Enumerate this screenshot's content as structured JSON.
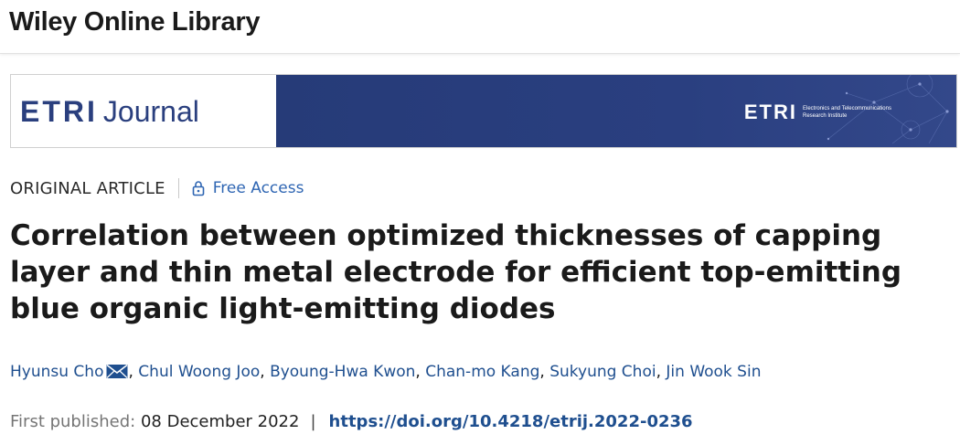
{
  "header": {
    "brand": "Wiley Online Library"
  },
  "banner": {
    "journal_etri": "ETRI",
    "journal_word": "Journal",
    "right_logo_etri": "ETRI",
    "right_logo_sub": "Electronics and Telecommunications Research Institute"
  },
  "meta": {
    "article_type": "ORIGINAL ARTICLE",
    "access": "Free Access"
  },
  "title": "Correlation between optimized thicknesses of capping layer and thin metal electrode for efficient top-emitting blue organic light-emitting diodes",
  "authors": [
    "Hyunsu Cho",
    "Chul Woong Joo",
    "Byoung-Hwa Kwon",
    "Chan-mo Kang",
    "Sukyung Choi",
    "Jin Wook Sin"
  ],
  "publication": {
    "label": "First published:",
    "date": "08 December 2022",
    "separator": "|",
    "doi": "https://doi.org/10.4218/etrij.2022-0236"
  },
  "colors": {
    "link": "#1f4f8f",
    "banner_bg": "#263b78",
    "free_access": "#2f66b3"
  },
  "icons": {
    "access": "lock-icon",
    "contact": "envelope-icon"
  }
}
